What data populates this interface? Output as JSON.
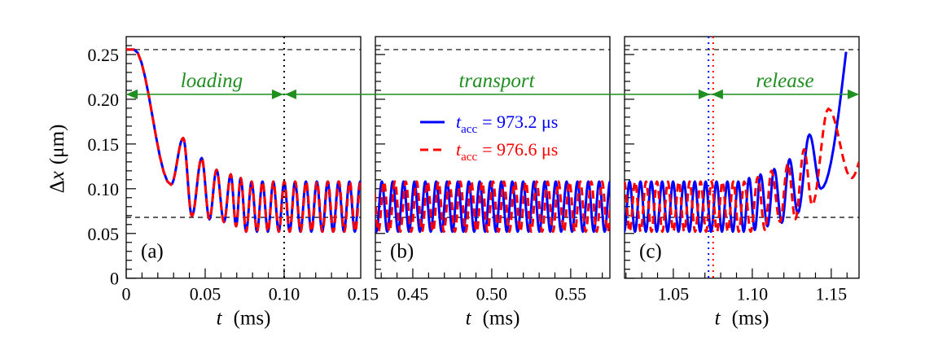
{
  "chart_data": {
    "type": "line",
    "ylabel": {
      "symbol": "Δ",
      "var": "x",
      "unit": "(μm)"
    },
    "xlabel": {
      "var": "t",
      "unit": "(ms)"
    },
    "ylim": [
      0,
      0.27
    ],
    "yticks": [
      0,
      0.05,
      0.1,
      0.15,
      0.2,
      0.25
    ],
    "ytick_labels": [
      "0",
      "0.05",
      "0.10",
      "0.15",
      "0.20",
      "0.25"
    ],
    "grid": false,
    "panels": [
      {
        "label": "(a)",
        "phase": "loading",
        "xlim": [
          0,
          0.1485
        ],
        "xticks": [
          0,
          0.05,
          0.1,
          0.15
        ],
        "xtick_labels": [
          "0",
          "0.05",
          "0.10",
          "0.15"
        ]
      },
      {
        "label": "(b)",
        "phase": "transport",
        "xlim": [
          0.4263,
          0.5748
        ],
        "xticks": [
          0.45,
          0.5,
          0.55
        ],
        "xtick_labels": [
          "0.45",
          "0.50",
          "0.55"
        ]
      },
      {
        "label": "(c)",
        "phase": "release",
        "xlim": [
          1.0191,
          1.1676
        ],
        "xticks": [
          1.05,
          1.1,
          1.15
        ],
        "xtick_labels": [
          "1.05",
          "1.10",
          "1.15"
        ]
      }
    ],
    "reference_lines": {
      "horizontal_dashed": [
        0.2555,
        0.068
      ],
      "phase_arrow_y": 0.2055,
      "vertical_dotted": [
        {
          "panel": 0,
          "t": 0.1,
          "color": "#000000"
        },
        {
          "panel": 2,
          "t": 1.0723,
          "color": "#0000ff"
        },
        {
          "panel": 2,
          "t": 1.0752,
          "color": "#ff0000"
        }
      ],
      "phase_boundaries": [
        0.1,
        1.0737
      ]
    },
    "legend": {
      "placement": "inside panel (b), upper-left"
    },
    "steady_oscillation": {
      "period": 0.0069,
      "max": 0.108,
      "min": 0.052
    },
    "loading_extrema": [
      [
        0,
        0.2555,
        "flat"
      ],
      [
        0.005,
        0.2555,
        "max"
      ],
      [
        0.0284,
        0.1045,
        "min"
      ],
      [
        0.0361,
        0.1567,
        "max"
      ],
      [
        0.0416,
        0.0694,
        "min"
      ],
      [
        0.0478,
        0.1343,
        "max"
      ],
      [
        0.0527,
        0.0658,
        "min"
      ],
      [
        0.0572,
        0.1212,
        "max"
      ],
      [
        0.0619,
        0.0627,
        "min"
      ],
      [
        0.0662,
        0.1161,
        "max"
      ],
      [
        0.0696,
        0.058,
        "min"
      ],
      [
        0.0725,
        0.112,
        "max"
      ]
    ],
    "series": [
      {
        "name_symbol": "t",
        "name_sub": "acc",
        "name_value": "= 973.2 μs",
        "color": "#0000ff",
        "style": "solid",
        "release_extrema": [
          [
            1.098,
            0.112,
            "max"
          ],
          [
            1.1016,
            0.054,
            "min"
          ],
          [
            1.1052,
            0.116,
            "max"
          ],
          [
            1.1096,
            0.058,
            "min"
          ],
          [
            1.1139,
            0.122,
            "max"
          ],
          [
            1.1187,
            0.062,
            "min"
          ],
          [
            1.1236,
            0.133,
            "max"
          ],
          [
            1.1288,
            0.0727,
            "min"
          ],
          [
            1.1362,
            0.1606,
            "max"
          ],
          [
            1.1434,
            0.1,
            "min"
          ],
          [
            1.1594,
            0.253,
            "end"
          ]
        ]
      },
      {
        "name_symbol": "t",
        "name_sub": "acc",
        "name_value": "= 976.6 μs",
        "color": "#ff0000",
        "style": "dashed",
        "release_extrema": [
          [
            1.0949,
            0.108,
            "max"
          ],
          [
            1.099,
            0.052,
            "min"
          ],
          [
            1.1035,
            0.113,
            "max"
          ],
          [
            1.108,
            0.054,
            "min"
          ],
          [
            1.1121,
            0.12,
            "max"
          ],
          [
            1.1176,
            0.063,
            "min"
          ],
          [
            1.1225,
            0.128,
            "max"
          ],
          [
            1.1273,
            0.066,
            "min"
          ],
          [
            1.1328,
            0.144,
            "max"
          ],
          [
            1.1379,
            0.0818,
            "min"
          ],
          [
            1.1482,
            0.1894,
            "max"
          ],
          [
            1.1628,
            0.112,
            "min"
          ],
          [
            1.1676,
            0.13,
            "end"
          ]
        ]
      }
    ],
    "colors": {
      "phase": "#1f8f1f",
      "blue": "#0000ff",
      "red": "#ff0000"
    }
  }
}
